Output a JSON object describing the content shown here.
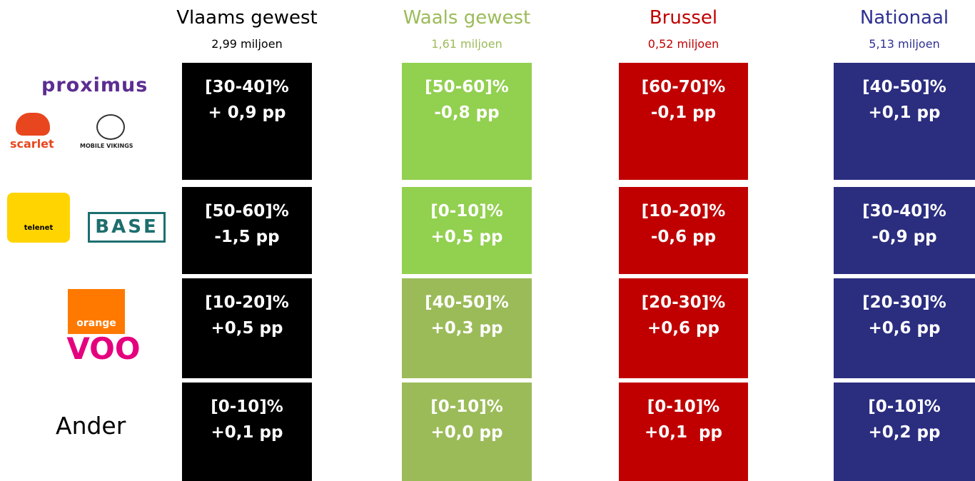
{
  "columns": [
    {
      "title": "Vlaams gewest",
      "subtitle": "2,99 miljoen",
      "color": "#000000",
      "cells": [
        {
          "share": "[30-40]%",
          "change": "+ 0,9 pp",
          "color": "#000000"
        },
        {
          "share": "[50-60]%",
          "change": "-1,5 pp",
          "color": "#000000"
        },
        {
          "share": "[10-20]%",
          "change": "+0,5 pp",
          "color": "#000000"
        },
        {
          "share": "[0-10]%",
          "change": "+0,1 pp",
          "color": "#000000"
        }
      ]
    },
    {
      "title": "Waals gewest",
      "subtitle": "1,61 miljoen",
      "color": "#9bbb59",
      "cells": [
        {
          "share": "[50-60]%",
          "change": "-0,8 pp",
          "color": "#92d050"
        },
        {
          "share": "[0-10]%",
          "change": "+0,5 pp",
          "color": "#92d050"
        },
        {
          "share": "[40-50]%",
          "change": "+0,3 pp",
          "color": "#9bbb59"
        },
        {
          "share": "[0-10]%",
          "change": "+0,0 pp",
          "color": "#9bbb59"
        }
      ]
    },
    {
      "title": "Brussel",
      "subtitle": "0,52 miljoen",
      "color": "#c00000",
      "cells": [
        {
          "share": "[60-70]%",
          "change": "-0,1 pp",
          "color": "#c00000"
        },
        {
          "share": "[10-20]%",
          "change": "-0,6 pp",
          "color": "#c00000"
        },
        {
          "share": "[20-30]%",
          "change": "+0,6 pp",
          "color": "#c00000"
        },
        {
          "share": "[0-10]%",
          "change": "+0,1  pp",
          "color": "#c00000"
        }
      ]
    },
    {
      "title": "Nationaal",
      "subtitle": "5,13 miljoen",
      "color": "#2e3192",
      "cells": [
        {
          "share": "[40-50]%",
          "change": "+0,1 pp",
          "color": "#2b2d7f"
        },
        {
          "share": "[30-40]%",
          "change": "-0,9 pp",
          "color": "#2b2d7f"
        },
        {
          "share": "[20-30]%",
          "change": "+0,6 pp",
          "color": "#2b2d7f"
        },
        {
          "share": "[0-10]%",
          "change": "+0,2 pp",
          "color": "#2b2d7f"
        }
      ]
    }
  ],
  "rows": [
    {
      "brands": [
        "proximus",
        "scarlet",
        "MOBILE VIKINGS"
      ]
    },
    {
      "brands": [
        "telenet",
        "BASE"
      ]
    },
    {
      "brands": [
        "orange",
        "VOO"
      ]
    },
    {
      "brands": [
        "Ander"
      ]
    }
  ]
}
